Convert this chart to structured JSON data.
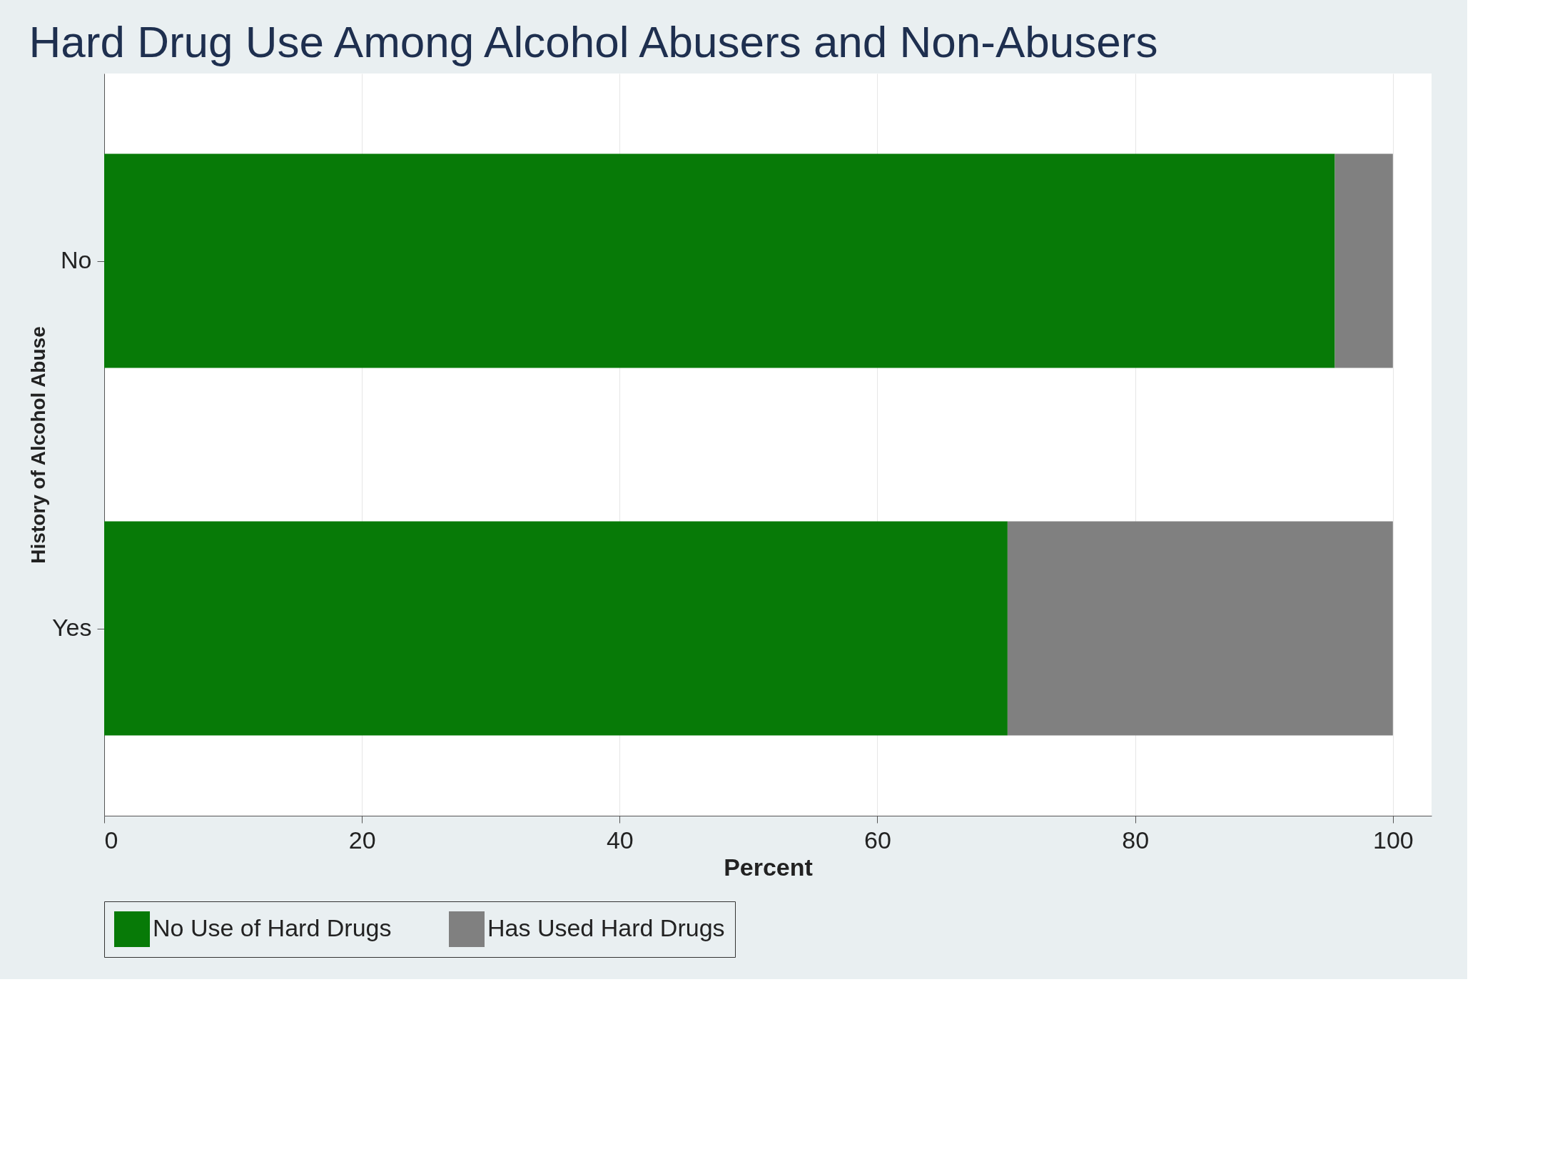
{
  "chart_data": {
    "type": "bar",
    "orientation": "horizontal",
    "stacked": true,
    "title": "Hard Drug Use Among Alcohol Abusers and Non-Abusers",
    "xlabel": "Percent",
    "ylabel": "History of Alcohol Abuse",
    "categories": [
      "No",
      "Yes"
    ],
    "series": [
      {
        "name": "No Use of Hard Drugs",
        "color": "#077a07",
        "values": [
          95.5,
          70.1
        ]
      },
      {
        "name": "Has Used Hard Drugs",
        "color": "#808080",
        "values": [
          4.5,
          29.9
        ]
      }
    ],
    "xlim": [
      0,
      103
    ],
    "xticks": [
      0,
      20,
      40,
      60,
      80,
      100
    ],
    "grid": "x",
    "legend": "bottom"
  }
}
